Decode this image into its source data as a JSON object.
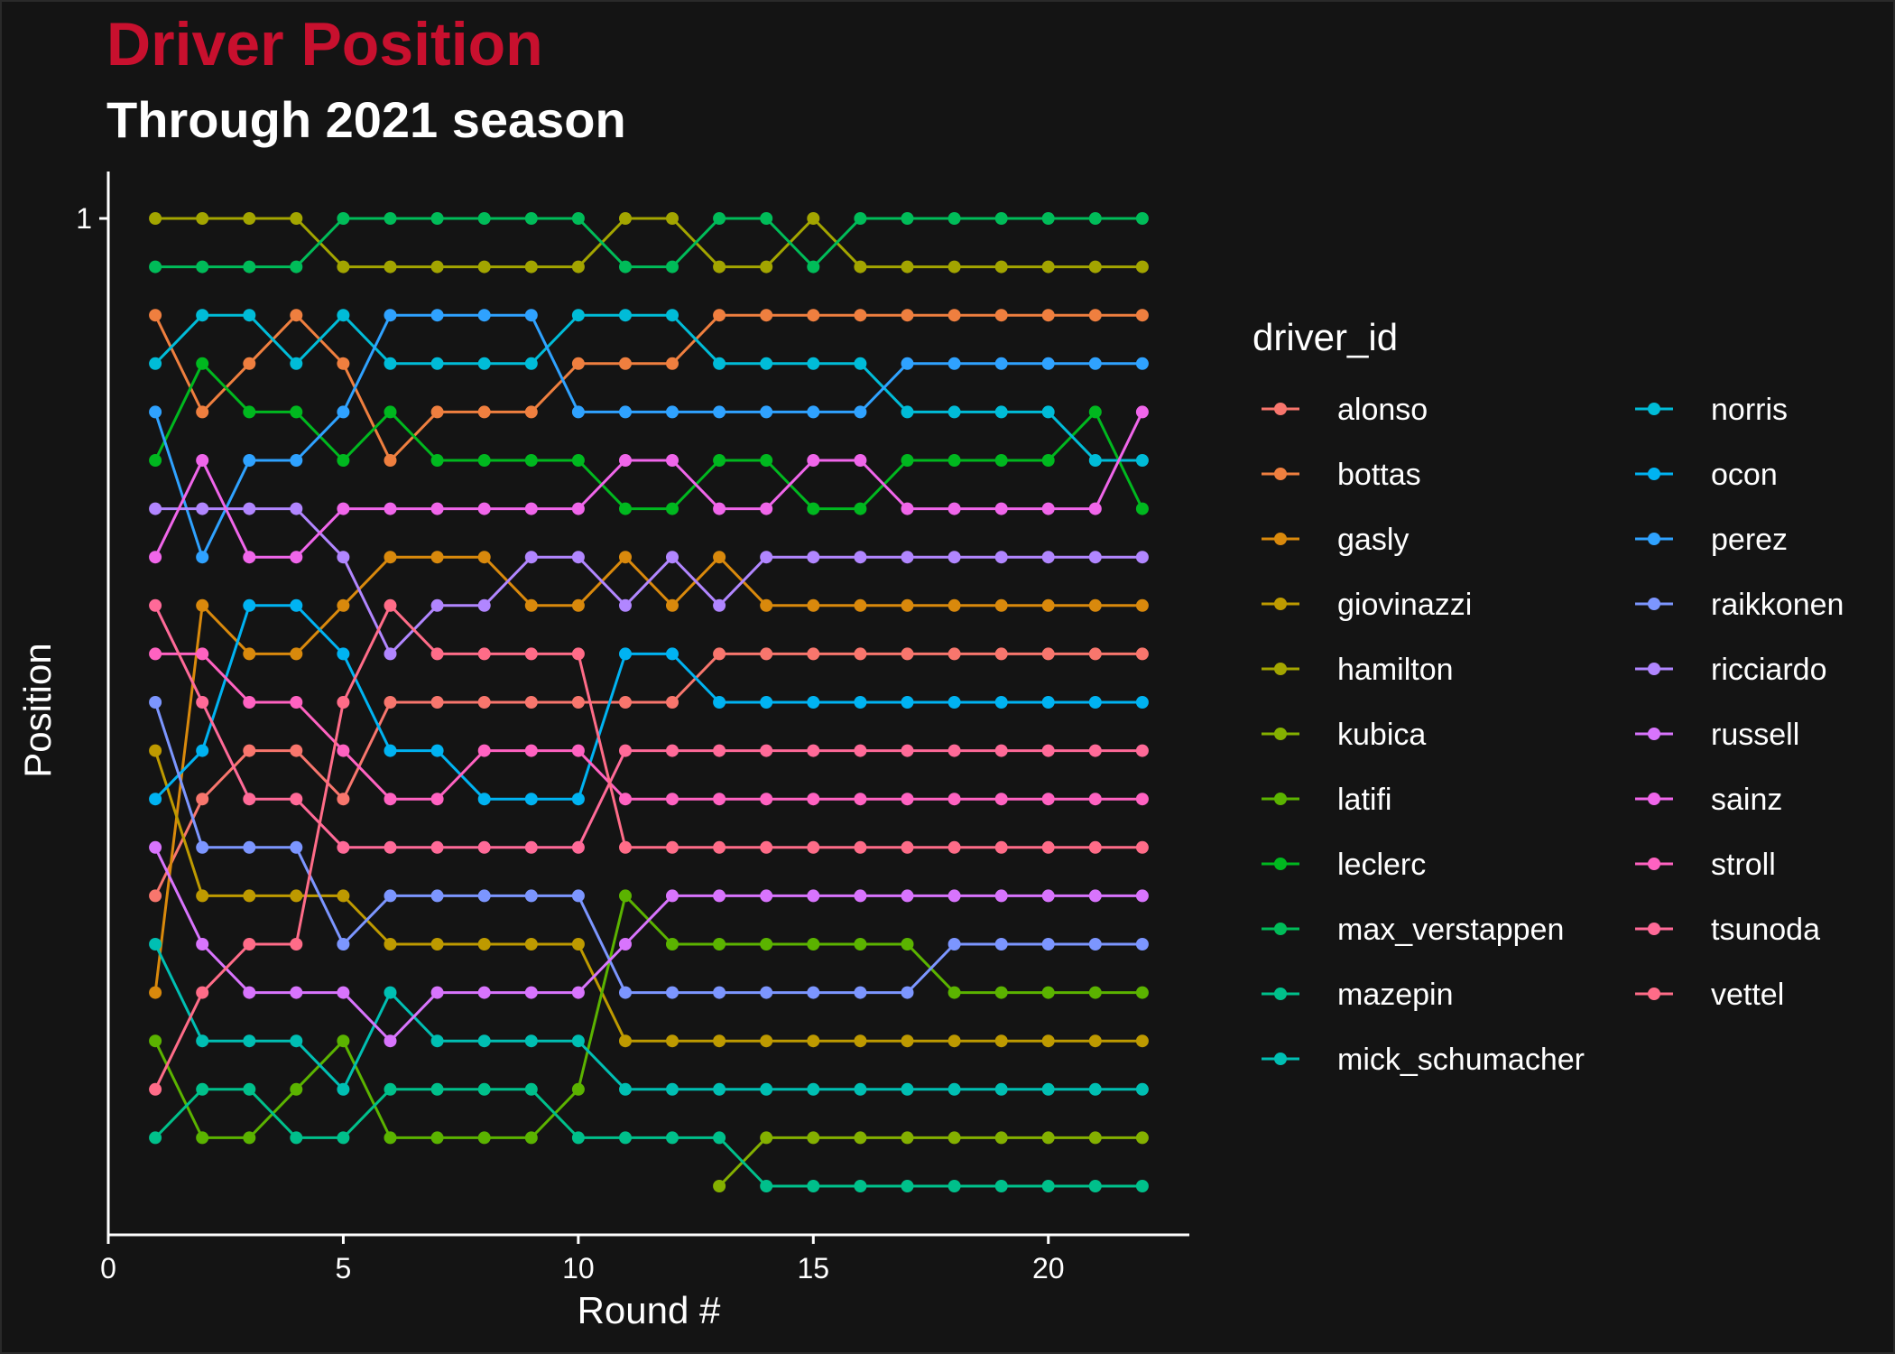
{
  "chart_data": {
    "type": "line",
    "title": "Driver Position",
    "subtitle": "Through 2021 season",
    "xlabel": "Round #",
    "ylabel": "Position",
    "xlim": [
      0,
      23
    ],
    "ylim": [
      1,
      21
    ],
    "y_reversed": true,
    "x_ticks": [
      0,
      5,
      10,
      15,
      20
    ],
    "y_ticks": [
      1
    ],
    "grid": false,
    "legend_title": "driver_id",
    "legend_position": "right",
    "series": [
      {
        "name": "alonso",
        "color": "#F8766D",
        "x": [
          1,
          2,
          3,
          4,
          5,
          6,
          7,
          8,
          9,
          10,
          11,
          12,
          13,
          14,
          15,
          16,
          17,
          18,
          19,
          20,
          21,
          22
        ],
        "y": [
          15,
          13,
          12,
          12,
          13,
          11,
          11,
          11,
          11,
          11,
          11,
          11,
          10,
          10,
          10,
          10,
          10,
          10,
          10,
          10,
          10,
          10
        ]
      },
      {
        "name": "bottas",
        "color": "#EF7F3F",
        "x": [
          1,
          2,
          3,
          4,
          5,
          6,
          7,
          8,
          9,
          10,
          11,
          12,
          13,
          14,
          15,
          16,
          17,
          18,
          19,
          20,
          21,
          22
        ],
        "y": [
          3,
          5,
          4,
          3,
          4,
          6,
          5,
          5,
          5,
          4,
          4,
          4,
          3,
          3,
          3,
          3,
          3,
          3,
          3,
          3,
          3,
          3
        ]
      },
      {
        "name": "gasly",
        "color": "#D9890C",
        "x": [
          1,
          2,
          3,
          4,
          5,
          6,
          7,
          8,
          9,
          10,
          11,
          12,
          13,
          14,
          15,
          16,
          17,
          18,
          19,
          20,
          21,
          22
        ],
        "y": [
          17,
          9,
          10,
          10,
          9,
          8,
          8,
          8,
          9,
          9,
          8,
          9,
          8,
          9,
          9,
          9,
          9,
          9,
          9,
          9,
          9,
          9
        ]
      },
      {
        "name": "giovinazzi",
        "color": "#BE9A00",
        "x": [
          1,
          2,
          3,
          4,
          5,
          6,
          7,
          8,
          9,
          10,
          11,
          12,
          13,
          14,
          15,
          16,
          17,
          18,
          19,
          20,
          21,
          22
        ],
        "y": [
          12,
          15,
          15,
          15,
          15,
          16,
          16,
          16,
          16,
          16,
          18,
          18,
          18,
          18,
          18,
          18,
          18,
          18,
          18,
          18,
          18,
          18
        ]
      },
      {
        "name": "hamilton",
        "color": "#A3A500",
        "x": [
          1,
          2,
          3,
          4,
          5,
          6,
          7,
          8,
          9,
          10,
          11,
          12,
          13,
          14,
          15,
          16,
          17,
          18,
          19,
          20,
          21,
          22
        ],
        "y": [
          1,
          1,
          1,
          1,
          2,
          2,
          2,
          2,
          2,
          2,
          1,
          1,
          2,
          2,
          1,
          2,
          2,
          2,
          2,
          2,
          2,
          2
        ]
      },
      {
        "name": "kubica",
        "color": "#84B000",
        "x": [
          13,
          14,
          15,
          16,
          17,
          18,
          19,
          20,
          21,
          22
        ],
        "y": [
          21,
          20,
          20,
          20,
          20,
          20,
          20,
          20,
          20,
          20
        ]
      },
      {
        "name": "latifi",
        "color": "#5BB300",
        "x": [
          1,
          2,
          3,
          4,
          5,
          6,
          7,
          8,
          9,
          10,
          11,
          12,
          13,
          14,
          15,
          16,
          17,
          18,
          19,
          20,
          21,
          22
        ],
        "y": [
          18,
          20,
          20,
          19,
          18,
          20,
          20,
          20,
          20,
          19,
          15,
          16,
          16,
          16,
          16,
          16,
          16,
          17,
          17,
          17,
          17,
          17
        ]
      },
      {
        "name": "leclerc",
        "color": "#00B81F",
        "x": [
          1,
          2,
          3,
          4,
          5,
          6,
          7,
          8,
          9,
          10,
          11,
          12,
          13,
          14,
          15,
          16,
          17,
          18,
          19,
          20,
          21,
          22
        ],
        "y": [
          6,
          4,
          5,
          5,
          6,
          5,
          6,
          6,
          6,
          6,
          7,
          7,
          6,
          6,
          7,
          7,
          6,
          6,
          6,
          6,
          5,
          7
        ]
      },
      {
        "name": "max_verstappen",
        "color": "#00BC59",
        "x": [
          1,
          2,
          3,
          4,
          5,
          6,
          7,
          8,
          9,
          10,
          11,
          12,
          13,
          14,
          15,
          16,
          17,
          18,
          19,
          20,
          21,
          22
        ],
        "y": [
          2,
          2,
          2,
          2,
          1,
          1,
          1,
          1,
          1,
          1,
          2,
          2,
          1,
          1,
          2,
          1,
          1,
          1,
          1,
          1,
          1,
          1
        ]
      },
      {
        "name": "mazepin",
        "color": "#00C08B",
        "x": [
          1,
          2,
          3,
          4,
          5,
          6,
          7,
          8,
          9,
          10,
          11,
          12,
          13,
          14,
          15,
          16,
          17,
          18,
          19,
          20,
          21,
          22
        ],
        "y": [
          20,
          19,
          19,
          20,
          20,
          19,
          19,
          19,
          19,
          20,
          20,
          20,
          20,
          21,
          21,
          21,
          21,
          21,
          21,
          21,
          21,
          21
        ]
      },
      {
        "name": "mick_schumacher",
        "color": "#00BFB3",
        "x": [
          1,
          2,
          3,
          4,
          5,
          6,
          7,
          8,
          9,
          10,
          11,
          12,
          13,
          14,
          15,
          16,
          17,
          18,
          19,
          20,
          21,
          22
        ],
        "y": [
          16,
          18,
          18,
          18,
          19,
          17,
          18,
          18,
          18,
          18,
          19,
          19,
          19,
          19,
          19,
          19,
          19,
          19,
          19,
          19,
          19,
          19
        ]
      },
      {
        "name": "norris",
        "color": "#00BCD8",
        "x": [
          1,
          2,
          3,
          4,
          5,
          6,
          7,
          8,
          9,
          10,
          11,
          12,
          13,
          14,
          15,
          16,
          17,
          18,
          19,
          20,
          21,
          22
        ],
        "y": [
          4,
          3,
          3,
          4,
          3,
          4,
          4,
          4,
          4,
          3,
          3,
          3,
          4,
          4,
          4,
          4,
          5,
          5,
          5,
          5,
          6,
          6
        ]
      },
      {
        "name": "ocon",
        "color": "#00B3F2",
        "x": [
          1,
          2,
          3,
          4,
          5,
          6,
          7,
          8,
          9,
          10,
          11,
          12,
          13,
          14,
          15,
          16,
          17,
          18,
          19,
          20,
          21,
          22
        ],
        "y": [
          13,
          12,
          9,
          9,
          10,
          12,
          12,
          13,
          13,
          13,
          10,
          10,
          11,
          11,
          11,
          11,
          11,
          11,
          11,
          11,
          11,
          11
        ]
      },
      {
        "name": "perez",
        "color": "#2FA2FF",
        "x": [
          1,
          2,
          3,
          4,
          5,
          6,
          7,
          8,
          9,
          10,
          11,
          12,
          13,
          14,
          15,
          16,
          17,
          18,
          19,
          20,
          21,
          22
        ],
        "y": [
          5,
          8,
          6,
          6,
          5,
          3,
          3,
          3,
          3,
          5,
          5,
          5,
          5,
          5,
          5,
          5,
          4,
          4,
          4,
          4,
          4,
          4
        ]
      },
      {
        "name": "raikkonen",
        "color": "#7C96FF",
        "x": [
          1,
          2,
          3,
          4,
          5,
          6,
          7,
          8,
          9,
          10,
          11,
          12,
          13,
          14,
          15,
          16,
          17,
          18,
          19,
          20,
          21,
          22
        ],
        "y": [
          11,
          14,
          14,
          14,
          16,
          15,
          15,
          15,
          15,
          15,
          17,
          17,
          17,
          17,
          17,
          17,
          17,
          16,
          16,
          16,
          16,
          16
        ]
      },
      {
        "name": "ricciardo",
        "color": "#B186FF",
        "x": [
          1,
          2,
          3,
          4,
          5,
          6,
          7,
          8,
          9,
          10,
          11,
          12,
          13,
          14,
          15,
          16,
          17,
          18,
          19,
          20,
          21,
          22
        ],
        "y": [
          7,
          7,
          7,
          7,
          8,
          10,
          9,
          9,
          8,
          8,
          9,
          8,
          9,
          8,
          8,
          8,
          8,
          8,
          8,
          8,
          8,
          8
        ]
      },
      {
        "name": "russell",
        "color": "#D874FD",
        "x": [
          1,
          2,
          3,
          4,
          5,
          6,
          7,
          8,
          9,
          10,
          11,
          12,
          13,
          14,
          15,
          16,
          17,
          18,
          19,
          20,
          21,
          22
        ],
        "y": [
          14,
          16,
          17,
          17,
          17,
          18,
          17,
          17,
          17,
          17,
          16,
          15,
          15,
          15,
          15,
          15,
          15,
          15,
          15,
          15,
          15,
          15
        ]
      },
      {
        "name": "sainz",
        "color": "#F066EA",
        "x": [
          1,
          2,
          3,
          4,
          5,
          6,
          7,
          8,
          9,
          10,
          11,
          12,
          13,
          14,
          15,
          16,
          17,
          18,
          19,
          20,
          21,
          22
        ],
        "y": [
          8,
          6,
          8,
          8,
          7,
          7,
          7,
          7,
          7,
          7,
          6,
          6,
          7,
          7,
          6,
          6,
          7,
          7,
          7,
          7,
          7,
          5
        ]
      },
      {
        "name": "stroll",
        "color": "#FF62C1",
        "x": [
          1,
          2,
          3,
          4,
          5,
          6,
          7,
          8,
          9,
          10,
          11,
          12,
          13,
          14,
          15,
          16,
          17,
          18,
          19,
          20,
          21,
          22
        ],
        "y": [
          10,
          10,
          11,
          11,
          12,
          13,
          13,
          12,
          12,
          12,
          13,
          13,
          13,
          13,
          13,
          13,
          13,
          13,
          13,
          13,
          13,
          13
        ]
      },
      {
        "name": "tsunoda",
        "color": "#FF6A98",
        "x": [
          1,
          2,
          3,
          4,
          5,
          6,
          7,
          8,
          9,
          10,
          11,
          12,
          13,
          14,
          15,
          16,
          17,
          18,
          19,
          20,
          21,
          22
        ],
        "y": [
          9,
          11,
          13,
          13,
          14,
          14,
          14,
          14,
          14,
          14,
          12,
          12,
          12,
          12,
          12,
          12,
          12,
          12,
          12,
          12,
          12,
          12
        ]
      },
      {
        "name": "vettel",
        "color": "#FF6C88",
        "x": [
          1,
          2,
          3,
          4,
          5,
          6,
          7,
          8,
          9,
          10,
          11,
          12,
          13,
          14,
          15,
          16,
          17,
          18,
          19,
          20,
          21,
          22
        ],
        "y": [
          19,
          17,
          16,
          16,
          11,
          9,
          10,
          10,
          10,
          10,
          14,
          14,
          14,
          14,
          14,
          14,
          14,
          14,
          14,
          14,
          14,
          14
        ]
      }
    ]
  }
}
